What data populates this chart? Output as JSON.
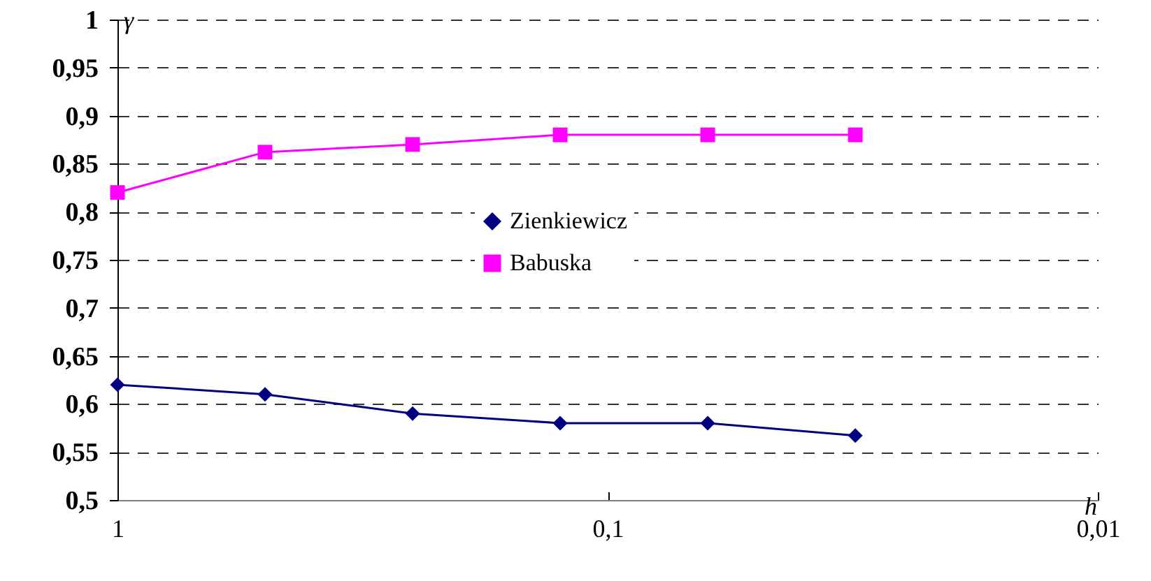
{
  "chart_data": {
    "type": "line",
    "xlabel": "h",
    "ylabel": "γ",
    "x": [
      1,
      0.5,
      0.25,
      0.125,
      0.0625,
      0.03125
    ],
    "series": [
      {
        "name": "Zienkiewicz",
        "color": "#000080",
        "marker": "diamond",
        "values": [
          0.62,
          0.61,
          0.59,
          0.58,
          0.58,
          0.567
        ]
      },
      {
        "name": "Babuska",
        "color": "#ff00ff",
        "marker": "square",
        "values": [
          0.82,
          0.862,
          0.87,
          0.88,
          0.88,
          0.88
        ]
      }
    ],
    "log": "x",
    "xlim": [
      1,
      0.01
    ],
    "xticks": [
      {
        "value": 1,
        "label": "1"
      },
      {
        "value": 0.1,
        "label": "0,1"
      },
      {
        "value": 0.01,
        "label": "0,01"
      }
    ],
    "ylim": [
      0.5,
      1
    ],
    "yticks": [
      {
        "value": 0.5,
        "label": "0,5"
      },
      {
        "value": 0.55,
        "label": "0,55"
      },
      {
        "value": 0.6,
        "label": "0,6"
      },
      {
        "value": 0.65,
        "label": "0,65"
      },
      {
        "value": 0.7,
        "label": "0,7"
      },
      {
        "value": 0.75,
        "label": "0,75"
      },
      {
        "value": 0.8,
        "label": "0,8"
      },
      {
        "value": 0.85,
        "label": "0,85"
      },
      {
        "value": 0.9,
        "label": "0,9"
      },
      {
        "value": 0.95,
        "label": "0,95"
      },
      {
        "value": 1,
        "label": "1"
      }
    ],
    "grid": "y",
    "legend": "center",
    "line_style": "solid"
  }
}
